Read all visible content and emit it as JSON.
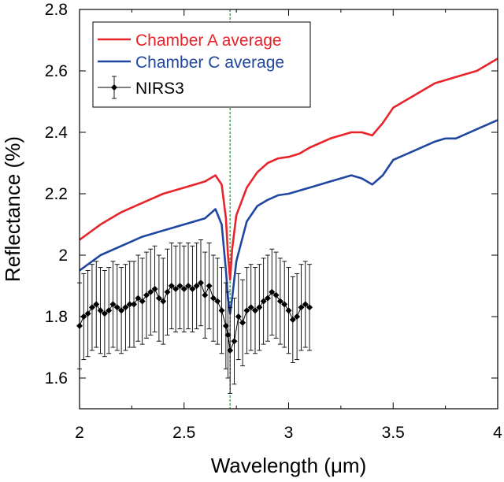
{
  "chart_data": {
    "type": "line",
    "xlabel": "Wavelength (μm)",
    "ylabel": "Reflectance (%)",
    "xlim": [
      2,
      4
    ],
    "ylim": [
      1.5,
      2.8
    ],
    "x_ticks": [
      2,
      2.5,
      3,
      3.5,
      4
    ],
    "x_tick_labels": [
      "2",
      "2.5",
      "3",
      "3.5",
      "4"
    ],
    "y_ticks": [
      1.6,
      1.8,
      2.0,
      2.2,
      2.4,
      2.6,
      2.8
    ],
    "y_tick_labels": [
      "1.6",
      "1.8",
      "2",
      "2.2",
      "2.4",
      "2.6",
      "2.8"
    ],
    "legend_position": "top-left",
    "reference_line": {
      "x": 2.72,
      "style": "dashed",
      "color": "#2e8b3a"
    },
    "series": [
      {
        "name": "Chamber A average",
        "color": "#e8232a",
        "x": [
          2.0,
          2.1,
          2.2,
          2.3,
          2.4,
          2.5,
          2.6,
          2.65,
          2.68,
          2.7,
          2.71,
          2.72,
          2.73,
          2.75,
          2.8,
          2.85,
          2.9,
          2.95,
          3.0,
          3.05,
          3.1,
          3.2,
          3.3,
          3.35,
          3.4,
          3.45,
          3.5,
          3.6,
          3.7,
          3.75,
          3.8,
          3.9,
          4.0
        ],
        "values": [
          2.05,
          2.1,
          2.14,
          2.17,
          2.2,
          2.22,
          2.24,
          2.26,
          2.23,
          2.12,
          2.0,
          1.92,
          2.02,
          2.13,
          2.22,
          2.27,
          2.3,
          2.315,
          2.32,
          2.33,
          2.35,
          2.38,
          2.4,
          2.4,
          2.39,
          2.43,
          2.48,
          2.52,
          2.56,
          2.57,
          2.58,
          2.6,
          2.64
        ]
      },
      {
        "name": "Chamber C average",
        "color": "#1f47a0",
        "x": [
          2.0,
          2.1,
          2.2,
          2.3,
          2.4,
          2.5,
          2.6,
          2.65,
          2.68,
          2.7,
          2.71,
          2.72,
          2.73,
          2.75,
          2.8,
          2.85,
          2.9,
          2.95,
          3.0,
          3.05,
          3.1,
          3.2,
          3.3,
          3.35,
          3.4,
          3.45,
          3.5,
          3.6,
          3.7,
          3.75,
          3.8,
          3.9,
          4.0
        ],
        "values": [
          1.95,
          2.0,
          2.03,
          2.06,
          2.08,
          2.1,
          2.12,
          2.15,
          2.1,
          1.95,
          1.86,
          1.81,
          1.86,
          1.98,
          2.11,
          2.16,
          2.18,
          2.195,
          2.2,
          2.21,
          2.22,
          2.24,
          2.26,
          2.25,
          2.23,
          2.26,
          2.31,
          2.34,
          2.37,
          2.38,
          2.38,
          2.41,
          2.44
        ]
      },
      {
        "name": "NIRS3",
        "color": "#000000",
        "marker": "diamond",
        "error_bar": 0.14,
        "x": [
          2.0,
          2.02,
          2.04,
          2.06,
          2.08,
          2.1,
          2.12,
          2.14,
          2.16,
          2.18,
          2.2,
          2.22,
          2.24,
          2.26,
          2.28,
          2.3,
          2.32,
          2.34,
          2.36,
          2.38,
          2.4,
          2.42,
          2.44,
          2.46,
          2.48,
          2.5,
          2.52,
          2.54,
          2.56,
          2.58,
          2.6,
          2.62,
          2.64,
          2.66,
          2.68,
          2.7,
          2.71,
          2.72,
          2.74,
          2.76,
          2.78,
          2.8,
          2.82,
          2.84,
          2.86,
          2.88,
          2.9,
          2.92,
          2.94,
          2.96,
          2.98,
          3.0,
          3.02,
          3.04,
          3.06,
          3.08,
          3.1
        ],
        "values": [
          1.77,
          1.8,
          1.81,
          1.83,
          1.84,
          1.82,
          1.81,
          1.82,
          1.84,
          1.83,
          1.82,
          1.83,
          1.84,
          1.84,
          1.86,
          1.85,
          1.87,
          1.88,
          1.89,
          1.86,
          1.85,
          1.88,
          1.9,
          1.89,
          1.9,
          1.89,
          1.9,
          1.89,
          1.9,
          1.91,
          1.87,
          1.9,
          1.86,
          1.85,
          1.82,
          1.77,
          1.74,
          1.69,
          1.72,
          1.8,
          1.78,
          1.82,
          1.83,
          1.82,
          1.83,
          1.85,
          1.86,
          1.88,
          1.87,
          1.85,
          1.84,
          1.82,
          1.79,
          1.8,
          1.83,
          1.84,
          1.83
        ]
      }
    ]
  }
}
